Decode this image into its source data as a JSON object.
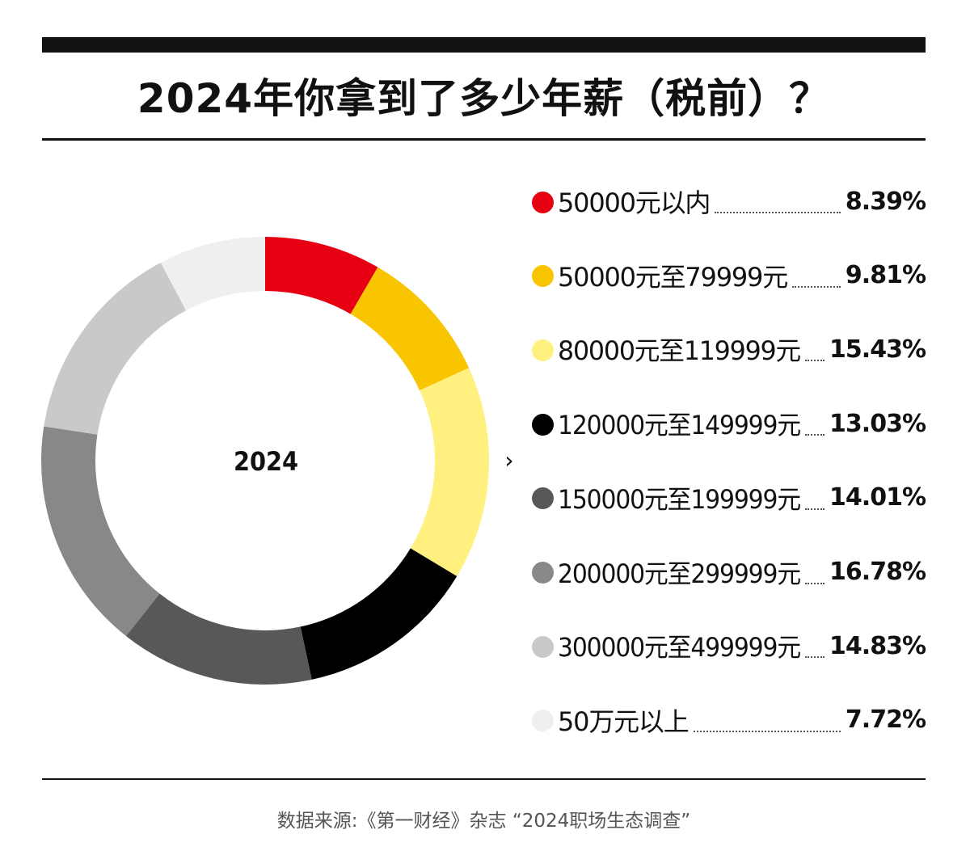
{
  "title": "2024年你拿到了多少年薪（税前）？",
  "source": "数据来源:《第一财经》杂志 “2024职场生态调查”",
  "center_label": "2024",
  "chevron": "›",
  "colors": {
    "red": "#e60012",
    "orange": "#f9c400",
    "yellow": "#fff07f",
    "black": "#000000",
    "dark_gray": "#595757",
    "gray": "#888888",
    "light_gray": "#c9c9c9",
    "pale_gray": "#efefef"
  },
  "chart_data": {
    "type": "pie",
    "variant": "donut",
    "center_label": "2024",
    "title": "2024年你拿到了多少年薪（税前）？",
    "legend_placement": "right",
    "slices": [
      {
        "label": "50000元以内",
        "value": 8.39,
        "display": "8.39%",
        "color": "#e60012"
      },
      {
        "label": "50000元至79999元",
        "value": 9.81,
        "display": "9.81%",
        "color": "#f9c400"
      },
      {
        "label": "80000元至119999元",
        "value": 15.43,
        "display": "15.43%",
        "color": "#fff07f"
      },
      {
        "label": "120000元至149999元",
        "value": 13.03,
        "display": "13.03%",
        "color": "#000000"
      },
      {
        "label": "150000元至199999元",
        "value": 14.01,
        "display": "14.01%",
        "color": "#595757"
      },
      {
        "label": "200000元至299999元",
        "value": 16.78,
        "display": "16.78%",
        "color": "#888888"
      },
      {
        "label": "300000元至499999元",
        "value": 14.83,
        "display": "14.83%",
        "color": "#c9c9c9"
      },
      {
        "label": "50万元以上",
        "value": 7.72,
        "display": "7.72%",
        "color": "#efefef"
      }
    ]
  }
}
